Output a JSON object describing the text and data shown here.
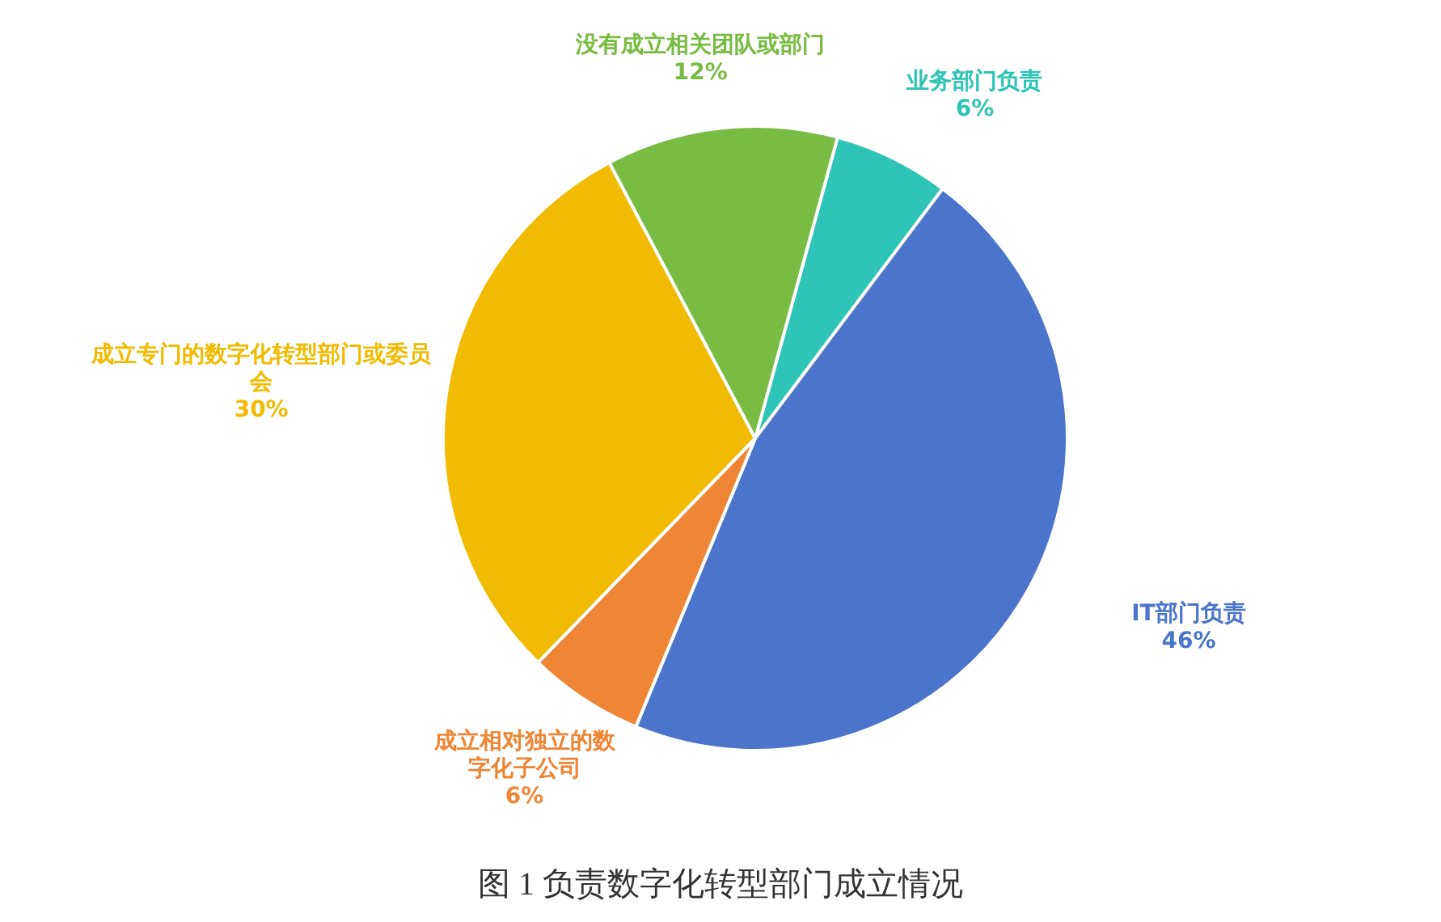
{
  "chart_data": {
    "type": "pie",
    "title": "图 1 负责数字化转型部门成立情况",
    "categories": [
      "业务部门负责",
      "IT部门负责",
      "成立相对独立的数字化子公司",
      "成立专门的数字化转型部门或委员会",
      "没有成立相关团队或部门"
    ],
    "values": [
      6,
      46,
      6,
      30,
      12
    ],
    "colors": [
      "#2ec4b6",
      "#4a75cb",
      "#ee8636",
      "#f1bb03",
      "#78bc43"
    ],
    "value_labels": [
      "6%",
      "46%",
      "6%",
      "30%",
      "12%"
    ]
  }
}
